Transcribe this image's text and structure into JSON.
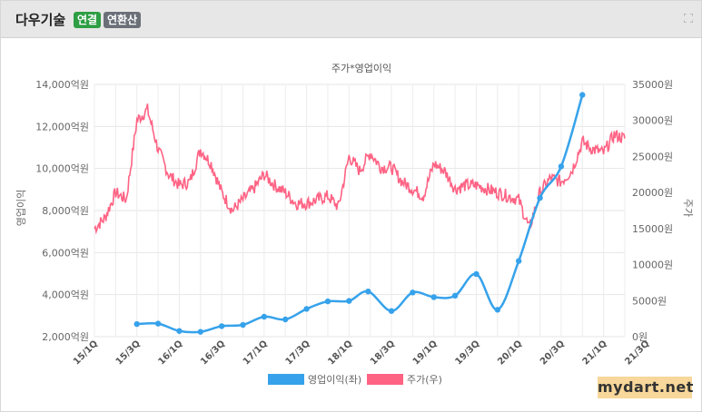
{
  "header": {
    "title": "다우기술",
    "badge_consolidated": "연결",
    "badge_annualized": "연환산"
  },
  "colors": {
    "operating_profit": "#36a2eb",
    "stock_price": "#ff6384"
  },
  "watermark": "mydart.net",
  "chart_data": {
    "type": "line",
    "title": "주가*영업이익",
    "x_categories": [
      "15/1Q",
      "15/3Q",
      "16/1Q",
      "16/3Q",
      "17/1Q",
      "17/3Q",
      "18/1Q",
      "18/3Q",
      "19/1Q",
      "19/3Q",
      "20/1Q",
      "20/3Q",
      "21/1Q",
      "21/3Q"
    ],
    "y_left": {
      "label": "영업이익",
      "min": 2000,
      "max": 14000,
      "ticks": [
        "2,000억원",
        "4,000억원",
        "6,000억원",
        "8,000억원",
        "10,000억원",
        "12,000억원",
        "14,000억원"
      ]
    },
    "y_right": {
      "label": "주가",
      "min": 0,
      "max": 35000,
      "ticks": [
        "0원",
        "5000원",
        "10000원",
        "15000원",
        "20000원",
        "25000원",
        "30000원",
        "35000원"
      ]
    },
    "grid": true,
    "legend_position": "bottom",
    "legend": [
      "영업이익(좌)",
      "주가(우)"
    ],
    "series": [
      {
        "name": "영업이익(좌)",
        "axis": "left",
        "x": [
          2.0,
          3.0,
          4.0,
          5.0,
          6.0,
          7.0,
          8.0,
          9.0,
          10.0,
          11.0,
          12.0,
          12.9,
          14.0,
          15.0,
          16.0,
          17.0,
          18.0,
          19.0,
          20.0,
          21.0,
          22.0,
          23.0,
          24.0,
          25.0
        ],
        "values": [
          2600,
          2620,
          2270,
          2230,
          2500,
          2560,
          2950,
          2820,
          3320,
          3680,
          3700,
          4150,
          3220,
          4100,
          3880,
          3950,
          4980,
          3280,
          5600,
          8600,
          10100,
          13500,
          null,
          null
        ]
      },
      {
        "name": "주가(우)",
        "axis": "right",
        "x": [
          0,
          0.5,
          1,
          1.5,
          2,
          2.5,
          3,
          3.5,
          4,
          4.5,
          5,
          5.5,
          6,
          6.5,
          7,
          7.5,
          8,
          8.5,
          9,
          9.5,
          10,
          10.5,
          11,
          11.5,
          12,
          12.5,
          13,
          13.5,
          14,
          14.5,
          15,
          15.5,
          16,
          16.5,
          17,
          17.5,
          18,
          18.5,
          19,
          19.5,
          20,
          20.5,
          21,
          21.5,
          22,
          22.5,
          23,
          23.5,
          24,
          24.5,
          25
        ],
        "values": [
          15000,
          16500,
          20000,
          19000,
          30000,
          31500,
          26000,
          22500,
          21000,
          21500,
          26000,
          24000,
          20000,
          17500,
          19000,
          20500,
          22500,
          21000,
          20000,
          18500,
          18500,
          19000,
          19500,
          18000,
          25000,
          23000,
          25500,
          23500,
          23500,
          21500,
          20500,
          19500,
          24000,
          23000,
          20500,
          21000,
          21000,
          20500,
          20000,
          19500,
          19000,
          15000,
          20000,
          22000,
          21500,
          23000,
          27000,
          26000,
          25500,
          28000,
          27500
        ]
      }
    ]
  }
}
